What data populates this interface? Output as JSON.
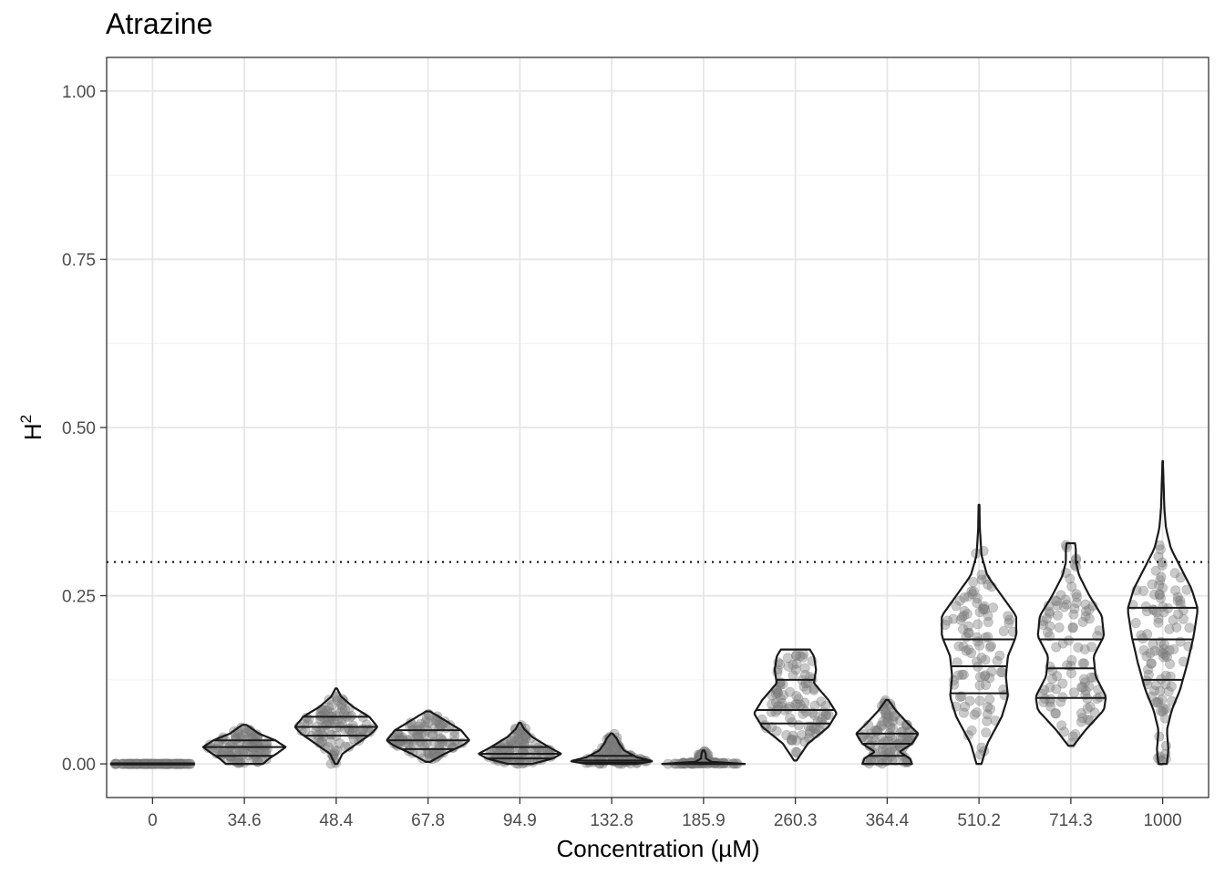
{
  "chart_data": {
    "type": "violin",
    "title": "Atrazine",
    "xlabel": "Concentration (µM)",
    "ylabel": "H",
    "ylabel_superscript": "2",
    "ylim": [
      -0.05,
      1.05
    ],
    "yticks": [
      "0.00",
      "0.25",
      "0.50",
      "0.75",
      "1.00"
    ],
    "ytick_values": [
      0,
      0.25,
      0.5,
      0.75,
      1.0
    ],
    "reference_line": 0.3,
    "grid": true,
    "point_color": "#7f7f7f",
    "violin_outline_color": "#1a1a1a",
    "categories": [
      "0",
      "34.6",
      "48.4",
      "67.8",
      "94.9",
      "132.8",
      "185.9",
      "260.3",
      "364.4",
      "510.2",
      "714.3",
      "1000"
    ],
    "groups": [
      {
        "min": 0.0,
        "max": 0.0,
        "quantiles": [
          0.0,
          0.0,
          0.0
        ],
        "density": [
          [
            0.0,
            1.0
          ]
        ]
      },
      {
        "min": 0.0,
        "max": 0.058,
        "quantiles": [
          0.012,
          0.025,
          0.035
        ],
        "density": [
          [
            0.0,
            0.45
          ],
          [
            0.008,
            0.6
          ],
          [
            0.016,
            0.8
          ],
          [
            0.025,
            1.0
          ],
          [
            0.035,
            0.75
          ],
          [
            0.045,
            0.35
          ],
          [
            0.058,
            0.05
          ]
        ]
      },
      {
        "min": 0.0,
        "max": 0.112,
        "quantiles": [
          0.042,
          0.055,
          0.07
        ],
        "density": [
          [
            0.0,
            0.03
          ],
          [
            0.015,
            0.15
          ],
          [
            0.03,
            0.5
          ],
          [
            0.045,
            0.85
          ],
          [
            0.055,
            1.0
          ],
          [
            0.07,
            0.8
          ],
          [
            0.085,
            0.4
          ],
          [
            0.1,
            0.12
          ],
          [
            0.112,
            0.02
          ]
        ]
      },
      {
        "min": 0.003,
        "max": 0.078,
        "quantiles": [
          0.022,
          0.035,
          0.05
        ],
        "density": [
          [
            0.003,
            0.05
          ],
          [
            0.015,
            0.4
          ],
          [
            0.028,
            0.85
          ],
          [
            0.035,
            1.0
          ],
          [
            0.05,
            0.8
          ],
          [
            0.065,
            0.4
          ],
          [
            0.078,
            0.05
          ]
        ]
      },
      {
        "min": 0.0,
        "max": 0.061,
        "quantiles": [
          0.008,
          0.015,
          0.025
        ],
        "density": [
          [
            0.0,
            0.3
          ],
          [
            0.008,
            0.8
          ],
          [
            0.015,
            1.0
          ],
          [
            0.025,
            0.7
          ],
          [
            0.04,
            0.3
          ],
          [
            0.052,
            0.1
          ],
          [
            0.061,
            0.02
          ]
        ]
      },
      {
        "min": 0.0,
        "max": 0.045,
        "quantiles": [
          0.002,
          0.005,
          0.012
        ],
        "density": [
          [
            0.0,
            0.6
          ],
          [
            0.004,
            1.0
          ],
          [
            0.01,
            0.6
          ],
          [
            0.02,
            0.3
          ],
          [
            0.03,
            0.18
          ],
          [
            0.038,
            0.12
          ],
          [
            0.045,
            0.02
          ]
        ]
      },
      {
        "min": 0.0,
        "max": 0.02,
        "quantiles": [
          0.0,
          0.0,
          0.002
        ],
        "density": [
          [
            0.0,
            1.0
          ],
          [
            0.003,
            0.2
          ],
          [
            0.008,
            0.06
          ],
          [
            0.015,
            0.05
          ],
          [
            0.02,
            0.02
          ]
        ]
      },
      {
        "min": 0.005,
        "max": 0.17,
        "quantiles": [
          0.06,
          0.08,
          0.125
        ],
        "density": [
          [
            0.005,
            0.03
          ],
          [
            0.03,
            0.3
          ],
          [
            0.055,
            0.8
          ],
          [
            0.075,
            1.0
          ],
          [
            0.095,
            0.8
          ],
          [
            0.12,
            0.45
          ],
          [
            0.14,
            0.5
          ],
          [
            0.16,
            0.45
          ],
          [
            0.17,
            0.35
          ]
        ]
      },
      {
        "min": 0.0,
        "max": 0.095,
        "quantiles": [
          0.012,
          0.03,
          0.045
        ],
        "density": [
          [
            0.0,
            0.6
          ],
          [
            0.008,
            0.55
          ],
          [
            0.018,
            0.3
          ],
          [
            0.03,
            0.6
          ],
          [
            0.045,
            0.75
          ],
          [
            0.06,
            0.5
          ],
          [
            0.08,
            0.2
          ],
          [
            0.095,
            0.03
          ]
        ]
      },
      {
        "min": 0.0,
        "max": 0.385,
        "quantiles": [
          0.105,
          0.145,
          0.185
        ],
        "density": [
          [
            0.0,
            0.06
          ],
          [
            0.03,
            0.2
          ],
          [
            0.07,
            0.55
          ],
          [
            0.1,
            0.7
          ],
          [
            0.13,
            0.65
          ],
          [
            0.16,
            0.7
          ],
          [
            0.19,
            0.9
          ],
          [
            0.22,
            0.9
          ],
          [
            0.25,
            0.55
          ],
          [
            0.28,
            0.2
          ],
          [
            0.31,
            0.06
          ],
          [
            0.35,
            0.02
          ],
          [
            0.385,
            0.01
          ]
        ]
      },
      {
        "min": 0.027,
        "max": 0.328,
        "quantiles": [
          0.098,
          0.142,
          0.185
        ],
        "density": [
          [
            0.027,
            0.06
          ],
          [
            0.05,
            0.35
          ],
          [
            0.08,
            0.8
          ],
          [
            0.1,
            0.85
          ],
          [
            0.13,
            0.6
          ],
          [
            0.16,
            0.55
          ],
          [
            0.19,
            0.8
          ],
          [
            0.22,
            0.75
          ],
          [
            0.25,
            0.45
          ],
          [
            0.28,
            0.2
          ],
          [
            0.3,
            0.12
          ],
          [
            0.32,
            0.12
          ],
          [
            0.328,
            0.1
          ]
        ]
      },
      {
        "min": 0.0,
        "max": 0.45,
        "quantiles": [
          0.125,
          0.185,
          0.232
        ],
        "density": [
          [
            0.0,
            0.1
          ],
          [
            0.02,
            0.14
          ],
          [
            0.05,
            0.1
          ],
          [
            0.08,
            0.22
          ],
          [
            0.11,
            0.42
          ],
          [
            0.15,
            0.6
          ],
          [
            0.19,
            0.75
          ],
          [
            0.23,
            0.85
          ],
          [
            0.26,
            0.7
          ],
          [
            0.29,
            0.45
          ],
          [
            0.32,
            0.2
          ],
          [
            0.35,
            0.08
          ],
          [
            0.38,
            0.04
          ],
          [
            0.42,
            0.02
          ],
          [
            0.45,
            0.005
          ]
        ]
      }
    ]
  }
}
